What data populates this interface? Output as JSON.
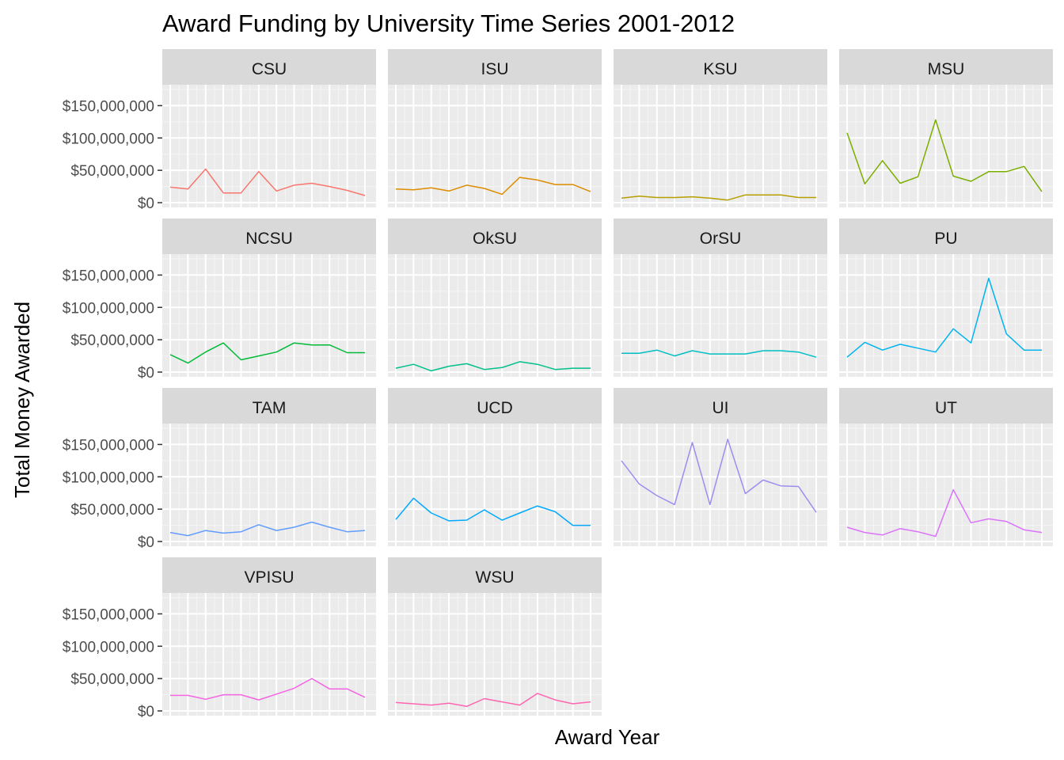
{
  "chart_data": {
    "type": "line",
    "title": "Award Funding by University Time Series 2001-2012",
    "xlabel": "Award Year",
    "ylabel": "Total Money Awarded",
    "ylim": [
      0,
      175000000
    ],
    "y_ticks": [
      0,
      50000000,
      100000000,
      150000000
    ],
    "y_tick_labels": [
      "$0",
      "$50,000,000",
      "$100,000,000",
      "$150,000,000"
    ],
    "x": [
      1,
      2,
      3,
      4,
      5,
      6,
      7,
      8,
      9,
      10,
      11,
      12
    ],
    "grid": true,
    "legend": "none",
    "panel_columns": 4,
    "series": [
      {
        "name": "CSU",
        "color": "#F8766D",
        "values": [
          24000000,
          21000000,
          52000000,
          15000000,
          15000000,
          48000000,
          18000000,
          27000000,
          30000000,
          25000000,
          19000000,
          11000000
        ]
      },
      {
        "name": "ISU",
        "color": "#DE8C00",
        "values": [
          21000000,
          20000000,
          23000000,
          18000000,
          27000000,
          22000000,
          13000000,
          39000000,
          35000000,
          28000000,
          28000000,
          17000000
        ]
      },
      {
        "name": "KSU",
        "color": "#B79F00",
        "values": [
          7000000,
          10000000,
          8000000,
          8000000,
          9000000,
          7000000,
          4000000,
          12000000,
          12000000,
          12000000,
          8000000,
          8000000
        ]
      },
      {
        "name": "MSU",
        "color": "#7CAE00",
        "values": [
          108000000,
          29000000,
          65000000,
          30000000,
          40000000,
          128000000,
          41000000,
          33000000,
          48000000,
          48000000,
          56000000,
          17000000
        ]
      },
      {
        "name": "NCSU",
        "color": "#00BA38",
        "values": [
          27000000,
          14000000,
          31000000,
          45000000,
          19000000,
          25000000,
          31000000,
          45000000,
          42000000,
          42000000,
          30000000,
          30000000
        ]
      },
      {
        "name": "OkSU",
        "color": "#00C08B",
        "values": [
          6000000,
          12000000,
          2000000,
          9000000,
          13000000,
          4000000,
          7000000,
          16000000,
          12000000,
          4000000,
          6000000,
          6000000
        ]
      },
      {
        "name": "OrSU",
        "color": "#00BFC4",
        "values": [
          29000000,
          29000000,
          34000000,
          25000000,
          33000000,
          28000000,
          28000000,
          28000000,
          33000000,
          33000000,
          31000000,
          23000000
        ]
      },
      {
        "name": "PU",
        "color": "#00B4F0",
        "values": [
          23000000,
          46000000,
          34000000,
          43000000,
          37000000,
          31000000,
          67000000,
          45000000,
          145000000,
          59000000,
          34000000,
          34000000
        ]
      },
      {
        "name": "TAM",
        "color": "#619CFF",
        "values": [
          14000000,
          9000000,
          17000000,
          13000000,
          15000000,
          26000000,
          17000000,
          22000000,
          30000000,
          22000000,
          15000000,
          17000000
        ]
      },
      {
        "name": "UCD",
        "color": "#00A9FF",
        "values": [
          34000000,
          67000000,
          44000000,
          32000000,
          33000000,
          49000000,
          33000000,
          44000000,
          55000000,
          46000000,
          25000000,
          25000000
        ]
      },
      {
        "name": "UI",
        "color": "#9D8DF1",
        "values": [
          125000000,
          89000000,
          71000000,
          57000000,
          153000000,
          57000000,
          158000000,
          74000000,
          95000000,
          86000000,
          85000000,
          45000000
        ]
      },
      {
        "name": "UT",
        "color": "#DB72FB",
        "values": [
          22000000,
          14000000,
          10000000,
          20000000,
          15000000,
          8000000,
          80000000,
          29000000,
          35000000,
          31000000,
          18000000,
          14000000
        ]
      },
      {
        "name": "VPISU",
        "color": "#F564E3",
        "values": [
          24000000,
          24000000,
          18000000,
          25000000,
          25000000,
          17000000,
          26000000,
          35000000,
          50000000,
          34000000,
          34000000,
          21000000
        ]
      },
      {
        "name": "WSU",
        "color": "#FF64B0",
        "values": [
          13000000,
          11000000,
          9000000,
          12000000,
          7000000,
          19000000,
          14000000,
          9000000,
          27000000,
          17000000,
          11000000,
          14000000
        ]
      }
    ]
  }
}
